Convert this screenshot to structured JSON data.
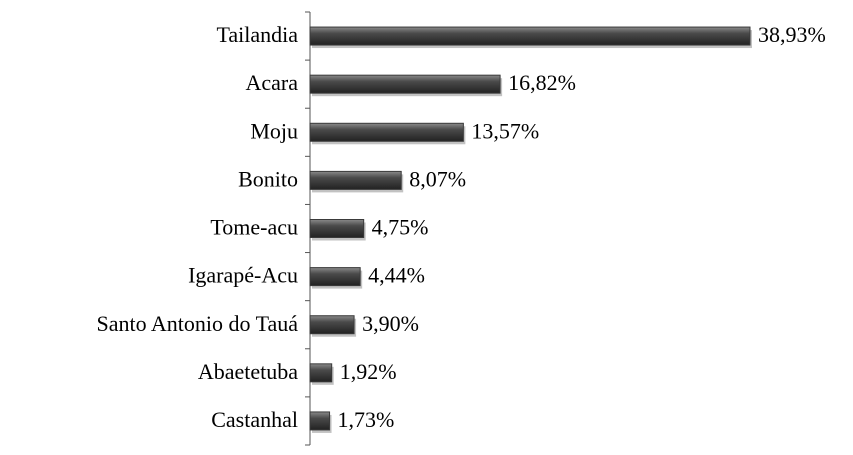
{
  "chart_data": {
    "type": "bar",
    "orientation": "horizontal",
    "categories": [
      "Tailandia",
      "Acara",
      "Moju",
      "Bonito",
      "Tome-acu",
      "Igarapé-Acu",
      "Santo Antonio do Tauá",
      "Abaetetuba",
      "Castanhal"
    ],
    "values": [
      38.93,
      16.82,
      13.57,
      8.07,
      4.75,
      4.44,
      3.9,
      1.92,
      1.73
    ],
    "value_labels": [
      "38,93%",
      "16,82%",
      "13,57%",
      "8,07%",
      "4,75%",
      "4,44%",
      "3,90%",
      "1,92%",
      "1,73%"
    ],
    "color": "#3a3a3a"
  }
}
